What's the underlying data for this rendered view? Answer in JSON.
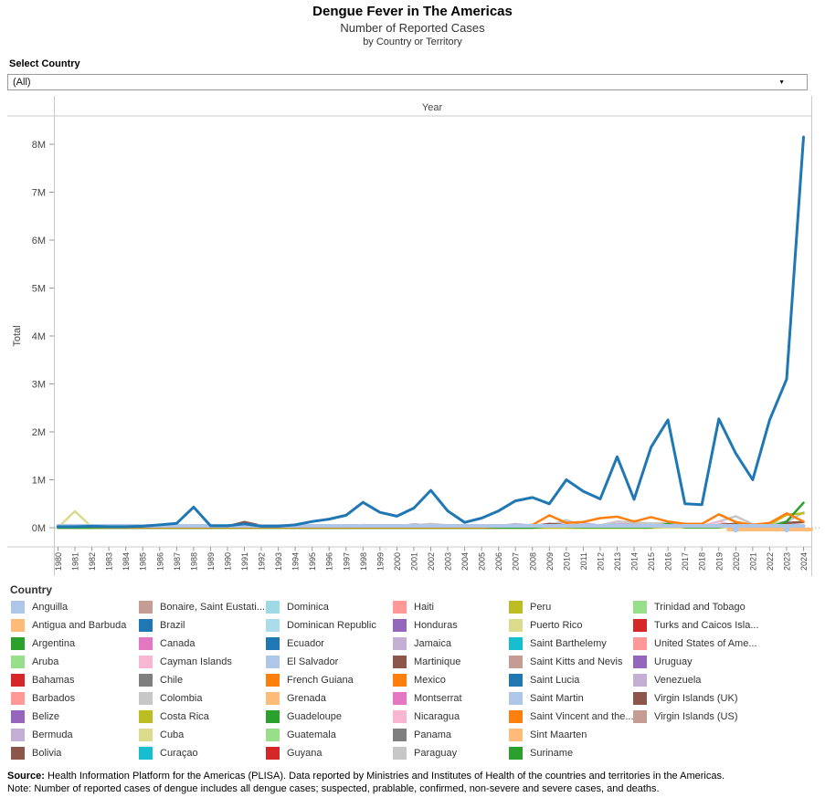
{
  "title": "Dengue Fever in The Americas",
  "subtitle": "Number of Reported Cases",
  "subtitle2": "by Country or Territory",
  "filter": {
    "label": "Select Country",
    "value": "(All)"
  },
  "footer": {
    "source_label": "Source:",
    "source_text": " Health Information Platform for the Americas (PLISA). Data reported by Ministries and Institutes of Health of the countries and territories in the Americas.",
    "note_text": "Note: Number of reported cases of dengue includes all dengue cases; suspected, prablable, confirmed, non-severe and severe cases, and deaths."
  },
  "chart_data": {
    "type": "line",
    "xlabel": "Year",
    "ylabel": "Total",
    "units": "millions of reported cases",
    "x": [
      1980,
      1981,
      1982,
      1983,
      1984,
      1985,
      1986,
      1987,
      1988,
      1989,
      1990,
      1991,
      1992,
      1993,
      1994,
      1995,
      1996,
      1997,
      1998,
      1999,
      2000,
      2001,
      2002,
      2003,
      2004,
      2005,
      2006,
      2007,
      2008,
      2009,
      2010,
      2011,
      2012,
      2013,
      2014,
      2015,
      2016,
      2017,
      2018,
      2019,
      2020,
      2021,
      2022,
      2023,
      2024
    ],
    "y_tick_labels": [
      "0M",
      "1M",
      "2M",
      "3M",
      "4M",
      "5M",
      "6M",
      "7M",
      "8M"
    ],
    "ylim": [
      0,
      8.6
    ],
    "grid": false,
    "legend_position": "bottom",
    "series": [
      {
        "name": "Venezuela",
        "color": "#c5b0d5",
        "width": 2,
        "values": [
          0,
          0,
          0,
          0,
          0,
          0,
          0,
          0,
          0,
          0,
          0,
          0,
          0,
          0,
          0,
          0.03,
          0.01,
          0.03,
          0.04,
          0.03,
          0.02,
          0.08,
          0.04,
          0.03,
          0.03,
          0.04,
          0.04,
          0.08,
          0.05,
          0.07,
          0.12,
          0.1,
          0.05,
          0.08,
          0.08,
          0.05,
          0.06,
          0.02,
          0.01,
          0.01,
          0.01,
          0.01,
          0.01,
          0.01,
          0.01
        ]
      },
      {
        "name": "Cuba",
        "color": "#dbdb8d",
        "width": 2.5,
        "values": [
          0,
          0.344,
          0.01,
          0,
          0,
          0,
          0,
          0,
          0,
          0,
          0,
          0,
          0,
          0,
          0,
          0,
          0,
          0,
          0,
          0,
          0,
          0,
          0,
          0,
          0,
          0,
          0,
          0,
          0,
          0,
          0,
          0,
          0,
          0,
          0,
          0,
          0,
          0,
          0,
          0,
          0,
          0,
          0,
          0,
          0
        ]
      },
      {
        "name": "Colombia",
        "color": "#c7c7c7",
        "width": 2.5,
        "values": [
          0,
          0,
          0,
          0,
          0,
          0.02,
          0.01,
          0,
          0,
          0,
          0,
          0,
          0,
          0,
          0,
          0,
          0,
          0,
          0.06,
          0.02,
          0.02,
          0.05,
          0.08,
          0.05,
          0.03,
          0.04,
          0.04,
          0.04,
          0.04,
          0.05,
          0.16,
          0.03,
          0.05,
          0.13,
          0.11,
          0.09,
          0.1,
          0.03,
          0.04,
          0.13,
          0.24,
          0.07,
          0.08,
          0.12,
          0.32
        ]
      },
      {
        "name": "Nicaragua",
        "color": "#f7b6d2",
        "width": 2,
        "values": [
          0,
          0,
          0,
          0,
          0,
          0,
          0,
          0,
          0,
          0,
          0,
          0,
          0,
          0,
          0,
          0,
          0,
          0,
          0,
          0,
          0,
          0,
          0,
          0,
          0,
          0,
          0,
          0,
          0,
          0,
          0,
          0,
          0,
          0.06,
          0.03,
          0.04,
          0.02,
          0.02,
          0.03,
          0.13,
          0.04,
          0.03,
          0.04,
          0.08,
          0.06
        ]
      },
      {
        "name": "Bolivia",
        "color": "#8c564b",
        "width": 2.5,
        "values": [
          0,
          0,
          0,
          0,
          0,
          0,
          0,
          0,
          0,
          0,
          0.03,
          0.12,
          0.04,
          0.01,
          0,
          0,
          0,
          0,
          0,
          0,
          0,
          0,
          0,
          0,
          0,
          0,
          0,
          0.02,
          0.03,
          0.08,
          0.05,
          0.02,
          0.03,
          0.04,
          0.04,
          0.03,
          0.03,
          0.02,
          0.02,
          0.06,
          0.08,
          0.03,
          0.03,
          0.1,
          0.12
        ]
      },
      {
        "name": "Peru",
        "color": "#bcbd22",
        "width": 2.5,
        "values": [
          0,
          0,
          0,
          0,
          0,
          0,
          0,
          0,
          0,
          0,
          0,
          0,
          0,
          0,
          0,
          0,
          0,
          0,
          0,
          0,
          0,
          0,
          0,
          0,
          0,
          0,
          0,
          0,
          0,
          0,
          0,
          0,
          0,
          0,
          0,
          0,
          0.03,
          0.07,
          0.01,
          0.02,
          0.06,
          0.05,
          0.07,
          0.27,
          0.3
        ]
      },
      {
        "name": "Argentina",
        "color": "#2ca02c",
        "width": 2.5,
        "values": [
          0,
          0,
          0,
          0,
          0,
          0,
          0,
          0,
          0,
          0,
          0,
          0,
          0,
          0,
          0,
          0,
          0,
          0,
          0,
          0,
          0,
          0,
          0,
          0,
          0,
          0,
          0,
          0,
          0,
          0.03,
          0.02,
          0.01,
          0.01,
          0.01,
          0.01,
          0.01,
          0.08,
          0.01,
          0.01,
          0.01,
          0.06,
          0.02,
          0.01,
          0.13,
          0.52
        ]
      },
      {
        "name": "Mexico",
        "color": "#ff7f0e",
        "width": 2.5,
        "values": [
          0.05,
          0.03,
          0.02,
          0.01,
          0.01,
          0.01,
          0.01,
          0.01,
          0.01,
          0.01,
          0.01,
          0.01,
          0.01,
          0.01,
          0.01,
          0.01,
          0.01,
          0.01,
          0.01,
          0.01,
          0.01,
          0.01,
          0.01,
          0.01,
          0.01,
          0.01,
          0.02,
          0.03,
          0.06,
          0.26,
          0.1,
          0.12,
          0.2,
          0.23,
          0.13,
          0.22,
          0.13,
          0.08,
          0.08,
          0.28,
          0.12,
          0.06,
          0.1,
          0.3,
          0.13
        ]
      },
      {
        "name": "Brazil",
        "color": "#1f77b4",
        "width": 3,
        "values": [
          0.02,
          0.02,
          0.03,
          0.02,
          0.02,
          0.03,
          0.06,
          0.09,
          0.43,
          0.04,
          0.04,
          0.08,
          0.03,
          0.03,
          0.06,
          0.13,
          0.18,
          0.26,
          0.53,
          0.32,
          0.24,
          0.41,
          0.78,
          0.35,
          0.11,
          0.2,
          0.35,
          0.56,
          0.63,
          0.5,
          1.0,
          0.76,
          0.6,
          1.48,
          0.59,
          1.68,
          2.25,
          0.5,
          0.48,
          2.27,
          1.55,
          1.0,
          2.25,
          3.1,
          8.15
        ]
      }
    ],
    "baseline_band": {
      "color": "#aec7e8",
      "meaning": "remaining countries and territories overlapping near zero"
    },
    "flat_band_right": {
      "color": "#ffbb78",
      "year_start": 2020,
      "year_end": 2024
    },
    "zero_markers": [
      {
        "year": 2020,
        "color": "#aec7e8"
      },
      {
        "year": 2023,
        "color": "#aec7e8"
      }
    ],
    "zero_line": {
      "style": "dotted",
      "color": "#aaaaaa"
    }
  },
  "legend": {
    "title": "Country",
    "columns": [
      [
        {
          "label": "Anguilla",
          "color": "#aec7e8"
        },
        {
          "label": "Antigua and Barbuda",
          "color": "#ffbb78"
        },
        {
          "label": "Argentina",
          "color": "#2ca02c"
        },
        {
          "label": "Aruba",
          "color": "#98df8a"
        },
        {
          "label": "Bahamas",
          "color": "#d62728"
        },
        {
          "label": "Barbados",
          "color": "#ff9896"
        },
        {
          "label": "Belize",
          "color": "#9467bd"
        },
        {
          "label": "Bermuda",
          "color": "#c5b0d5"
        },
        {
          "label": "Bolivia",
          "color": "#8c564b"
        }
      ],
      [
        {
          "label": "Bonaire, Saint Eustati...",
          "color": "#c49c94"
        },
        {
          "label": "Brazil",
          "color": "#1f77b4"
        },
        {
          "label": "Canada",
          "color": "#e377c2"
        },
        {
          "label": "Cayman Islands",
          "color": "#f7b6d2"
        },
        {
          "label": "Chile",
          "color": "#7f7f7f"
        },
        {
          "label": "Colombia",
          "color": "#c7c7c7"
        },
        {
          "label": "Costa Rica",
          "color": "#bcbd22"
        },
        {
          "label": "Cuba",
          "color": "#dbdb8d"
        },
        {
          "label": "Curaçao",
          "color": "#17becf"
        }
      ],
      [
        {
          "label": "Dominica",
          "color": "#9edae5"
        },
        {
          "label": "Dominican Republic",
          "color": "#aadcec"
        },
        {
          "label": "Ecuador",
          "color": "#1f77b4"
        },
        {
          "label": "El Salvador",
          "color": "#aec7e8"
        },
        {
          "label": "French Guiana",
          "color": "#ff7f0e"
        },
        {
          "label": "Grenada",
          "color": "#ffbb78"
        },
        {
          "label": "Guadeloupe",
          "color": "#2ca02c"
        },
        {
          "label": "Guatemala",
          "color": "#98df8a"
        },
        {
          "label": "Guyana",
          "color": "#d62728"
        }
      ],
      [
        {
          "label": "Haiti",
          "color": "#ff9896"
        },
        {
          "label": "Honduras",
          "color": "#9467bd"
        },
        {
          "label": "Jamaica",
          "color": "#c5b0d5"
        },
        {
          "label": "Martinique",
          "color": "#8c564b"
        },
        {
          "label": "Mexico",
          "color": "#ff7f0e"
        },
        {
          "label": "Montserrat",
          "color": "#e377c2"
        },
        {
          "label": "Nicaragua",
          "color": "#f7b6d2"
        },
        {
          "label": "Panama",
          "color": "#7f7f7f"
        },
        {
          "label": "Paraguay",
          "color": "#c7c7c7"
        }
      ],
      [
        {
          "label": "Peru",
          "color": "#bcbd22"
        },
        {
          "label": "Puerto Rico",
          "color": "#dbdb8d"
        },
        {
          "label": "Saint Barthelemy",
          "color": "#17becf"
        },
        {
          "label": "Saint Kitts and Nevis",
          "color": "#c49c94"
        },
        {
          "label": "Saint Lucia",
          "color": "#1f77b4"
        },
        {
          "label": "Saint Martin",
          "color": "#aec7e8"
        },
        {
          "label": "Saint Vincent and the...",
          "color": "#ff7f0e"
        },
        {
          "label": "Sint Maarten",
          "color": "#ffbb78"
        },
        {
          "label": "Suriname",
          "color": "#2ca02c"
        }
      ],
      [
        {
          "label": "Trinidad and Tobago",
          "color": "#98df8a"
        },
        {
          "label": "Turks and Caicos Isla...",
          "color": "#d62728"
        },
        {
          "label": "United States of Ame...",
          "color": "#ff9896"
        },
        {
          "label": "Uruguay",
          "color": "#9467bd"
        },
        {
          "label": "Venezuela",
          "color": "#c5b0d5"
        },
        {
          "label": "Virgin Islands (UK)",
          "color": "#8c564b"
        },
        {
          "label": "Virgin Islands (US)",
          "color": "#c49c94"
        }
      ]
    ]
  }
}
